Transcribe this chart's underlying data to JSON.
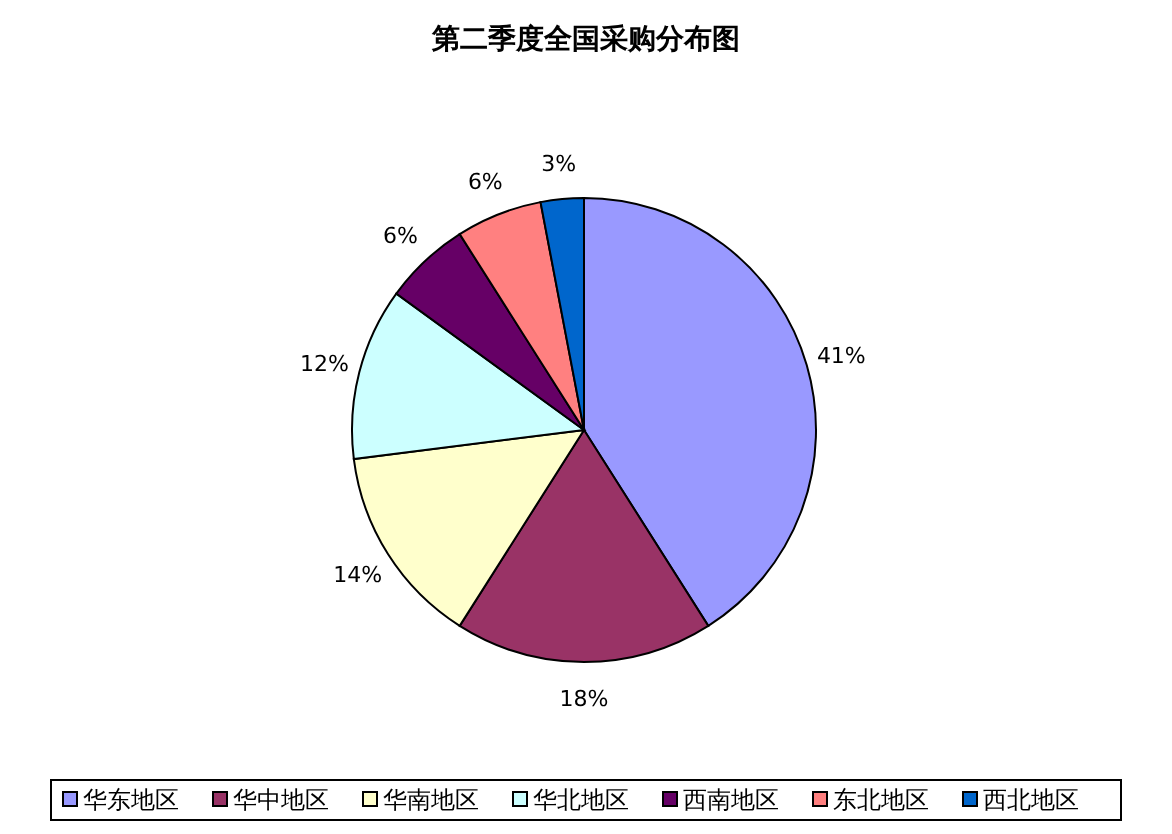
{
  "chart_data": {
    "type": "pie",
    "title": "第二季度全国采购分布图",
    "categories": [
      "华东地区",
      "华中地区",
      "华南地区",
      "华北地区",
      "西南地区",
      "东北地区",
      "西北地区"
    ],
    "values": [
      41,
      18,
      14,
      12,
      6,
      6,
      3
    ],
    "colors": [
      "#9999ff",
      "#993366",
      "#ffffcc",
      "#ccffff",
      "#660066",
      "#ff8080",
      "#0066cc"
    ],
    "value_labels": [
      "41%",
      "18%",
      "14%",
      "12%",
      "6%",
      "6%",
      "3%"
    ],
    "legend": "bottom"
  }
}
